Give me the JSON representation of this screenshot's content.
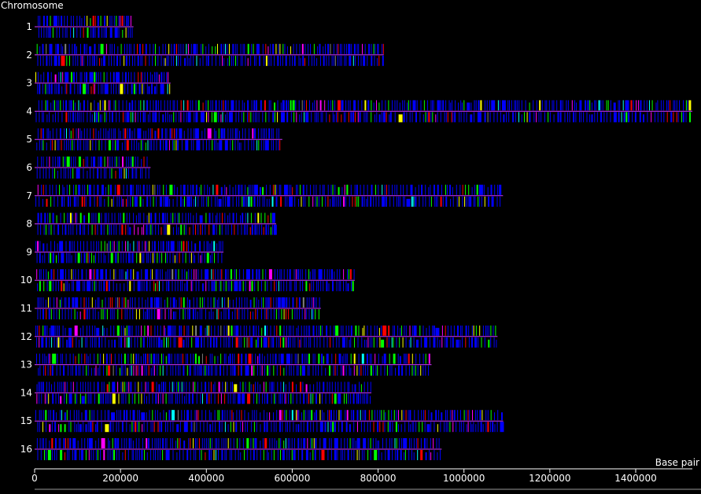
{
  "chart_data": {
    "type": "gene-map",
    "ylabel": "Chromosome",
    "xlabel": "Base pair",
    "xlim": [
      0,
      1531933
    ],
    "x_ticks": [
      0,
      200000,
      400000,
      600000,
      800000,
      1000000,
      1200000,
      1400000
    ],
    "x_tick_labels": [
      "0",
      "200000",
      "400000",
      "600000",
      "800000",
      "1000000",
      "1200000",
      "1400000"
    ],
    "chromosomes": [
      {
        "label": "1",
        "length": 230218
      },
      {
        "label": "2",
        "length": 813184
      },
      {
        "label": "3",
        "length": 316620
      },
      {
        "label": "4",
        "length": 1531933
      },
      {
        "label": "5",
        "length": 576874
      },
      {
        "label": "6",
        "length": 270161
      },
      {
        "label": "7",
        "length": 1090940
      },
      {
        "label": "8",
        "length": 562643
      },
      {
        "label": "9",
        "length": 439888
      },
      {
        "label": "10",
        "length": 745751
      },
      {
        "label": "11",
        "length": 666816
      },
      {
        "label": "12",
        "length": 1078177
      },
      {
        "label": "13",
        "length": 924431
      },
      {
        "label": "14",
        "length": 784333
      },
      {
        "label": "15",
        "length": 1091291
      },
      {
        "label": "16",
        "length": 948066
      }
    ],
    "feature_colors": [
      "#0000ff",
      "#00ff00",
      "#ff0000",
      "#ff00ff",
      "#ffff00",
      "#00ffff",
      "#808080"
    ],
    "background": "#000000",
    "axis_color": "#ffffff",
    "chromosome_line_color": "#cc33ff"
  }
}
